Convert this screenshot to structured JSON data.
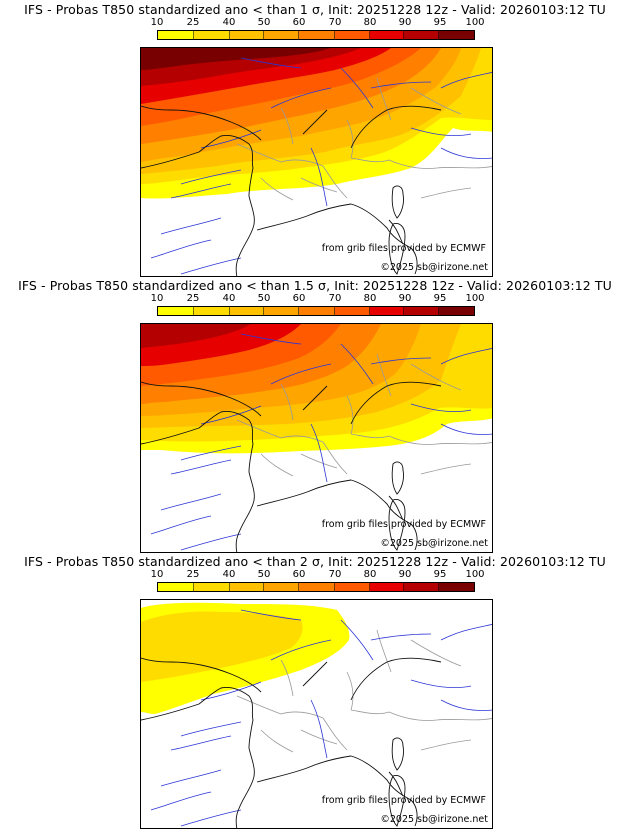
{
  "colorbar": {
    "labels": [
      "10",
      "25",
      "40",
      "50",
      "60",
      "70",
      "80",
      "90",
      "95",
      "100"
    ],
    "colors": [
      "#ffff00",
      "#ffdc00",
      "#ffc000",
      "#ffa500",
      "#ff8000",
      "#ff5a00",
      "#e60000",
      "#b40000",
      "#780000"
    ]
  },
  "panels": [
    {
      "title": "IFS - Probas T850  standardized ano < than 1 σ, Init: 20251228 12z - Valid: 20260103:12 TU",
      "credit": "from grib files provided by ECMWF",
      "copyright": "©2025 sb@irizone.net"
    },
    {
      "title": "IFS - Probas T850  standardized ano < than 1.5 σ, Init: 20251228 12z - Valid: 20260103:12 TU",
      "credit": "from grib files provided by ECMWF",
      "copyright": "©2025 sb@irizone.net"
    },
    {
      "title": "IFS - Probas T850  standardized ano < than 2 σ, Init: 20251228 12z - Valid: 20260103:12 TU",
      "credit": "from grib files provided by ECMWF",
      "copyright": "©2025 sb@irizone.net"
    }
  ],
  "colors": {
    "coast": "#111111",
    "rivers": "#2b35d6",
    "borders": "#9a9a9a"
  }
}
